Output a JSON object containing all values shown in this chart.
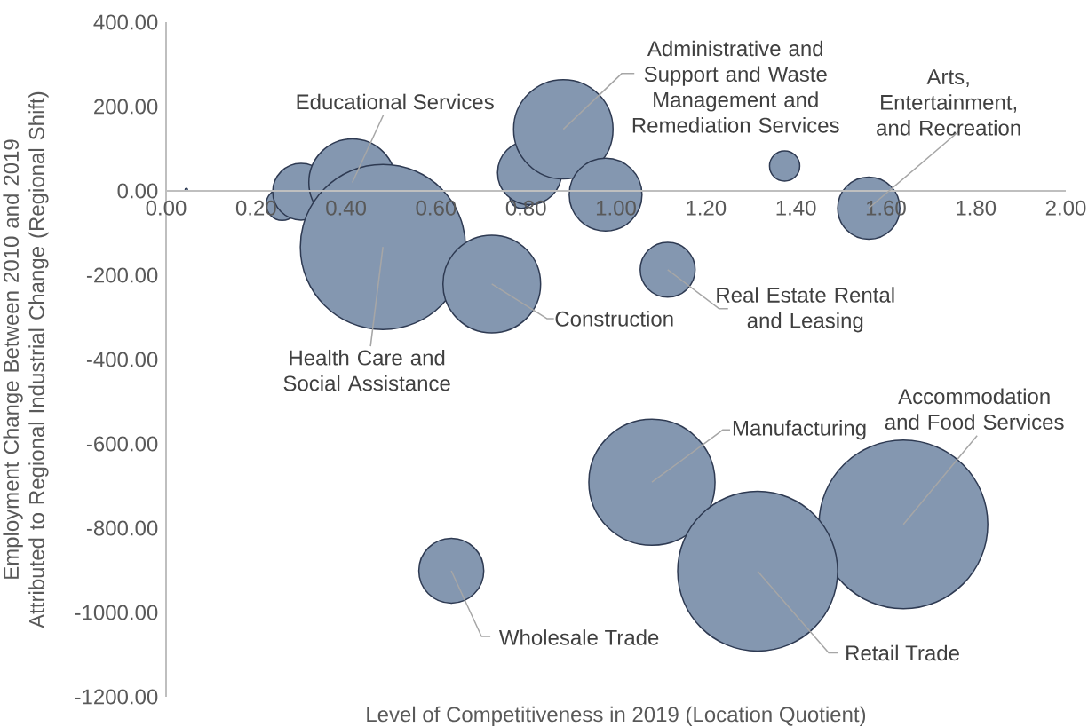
{
  "chart_data": {
    "type": "bubble",
    "xlabel": "Level of Competitiveness in 2019 (Location Quotient)",
    "ylabel": "Employment Change Between 2010 and 2019 Attributed to Regional Industrial Change (Regional Shift)",
    "color": "#8497b0",
    "x": [
      0.045,
      0.258,
      0.3,
      0.414,
      0.482,
      0.724,
      0.79,
      0.808,
      0.883,
      0.977,
      1.375,
      1.562,
      1.115,
      1.08,
      0.634,
      1.639,
      1.315
    ],
    "values": [
      3,
      -32,
      -2,
      20,
      -133,
      -221,
      -14,
      43,
      146,
      -9,
      59,
      -41,
      -187,
      -691,
      -901,
      -791,
      -902
    ],
    "sizes": [
      0.0002,
      0.036,
      0.113,
      0.266,
      0.958,
      0.335,
      0.019,
      0.144,
      0.347,
      0.186,
      0.032,
      0.136,
      0.106,
      0.559,
      0.148,
      1,
      0.898
    ],
    "xlim": [
      0,
      2
    ],
    "ylim": [
      -1200,
      400
    ],
    "xticks": [
      {
        "value": 0,
        "label": "0.00"
      },
      {
        "value": 0.2,
        "label": "0.20"
      },
      {
        "value": 0.4,
        "label": "0.40"
      },
      {
        "value": 0.6,
        "label": "0.60"
      },
      {
        "value": 0.8,
        "label": "0.80"
      },
      {
        "value": 1,
        "label": "1.00"
      },
      {
        "value": 1.2,
        "label": "1.20"
      },
      {
        "value": 1.4,
        "label": "1.40"
      },
      {
        "value": 1.6,
        "label": "1.60"
      },
      {
        "value": 1.8,
        "label": "1.80"
      },
      {
        "value": 2,
        "label": "2.00"
      }
    ],
    "yticks": [
      {
        "value": 400,
        "label": "400.00"
      },
      {
        "value": 200,
        "label": "200.00"
      },
      {
        "value": 0,
        "label": "0.00"
      },
      {
        "value": -200,
        "label": "-200.00"
      },
      {
        "value": -400,
        "label": "-400.00"
      },
      {
        "value": -600,
        "label": "-600.00"
      },
      {
        "value": -800,
        "label": "-800.00"
      },
      {
        "value": -1000,
        "label": "-1000.00"
      },
      {
        "value": -1200,
        "label": "-1200.00"
      }
    ],
    "annotations": [
      {
        "text": "Educational Services",
        "x": 0.414,
        "y": 20
      },
      {
        "text": "Administrative and Support and Waste Management and Remediation Services",
        "x": 0.883,
        "y": 146
      },
      {
        "text": "Arts, Entertainment, and Recreation",
        "x": 1.562,
        "y": -41
      },
      {
        "text": "Health Care and Social Assistance",
        "x": 0.482,
        "y": -133
      },
      {
        "text": "Construction",
        "x": 0.724,
        "y": -221
      },
      {
        "text": "Real Estate Rental and Leasing",
        "x": 1.115,
        "y": -187
      },
      {
        "text": "Manufacturing",
        "x": 1.08,
        "y": -691
      },
      {
        "text": "Accommodation and Food Services",
        "x": 1.639,
        "y": -791
      },
      {
        "text": "Wholesale Trade",
        "x": 0.634,
        "y": -901
      },
      {
        "text": "Retail Trade",
        "x": 1.315,
        "y": -902
      }
    ]
  }
}
